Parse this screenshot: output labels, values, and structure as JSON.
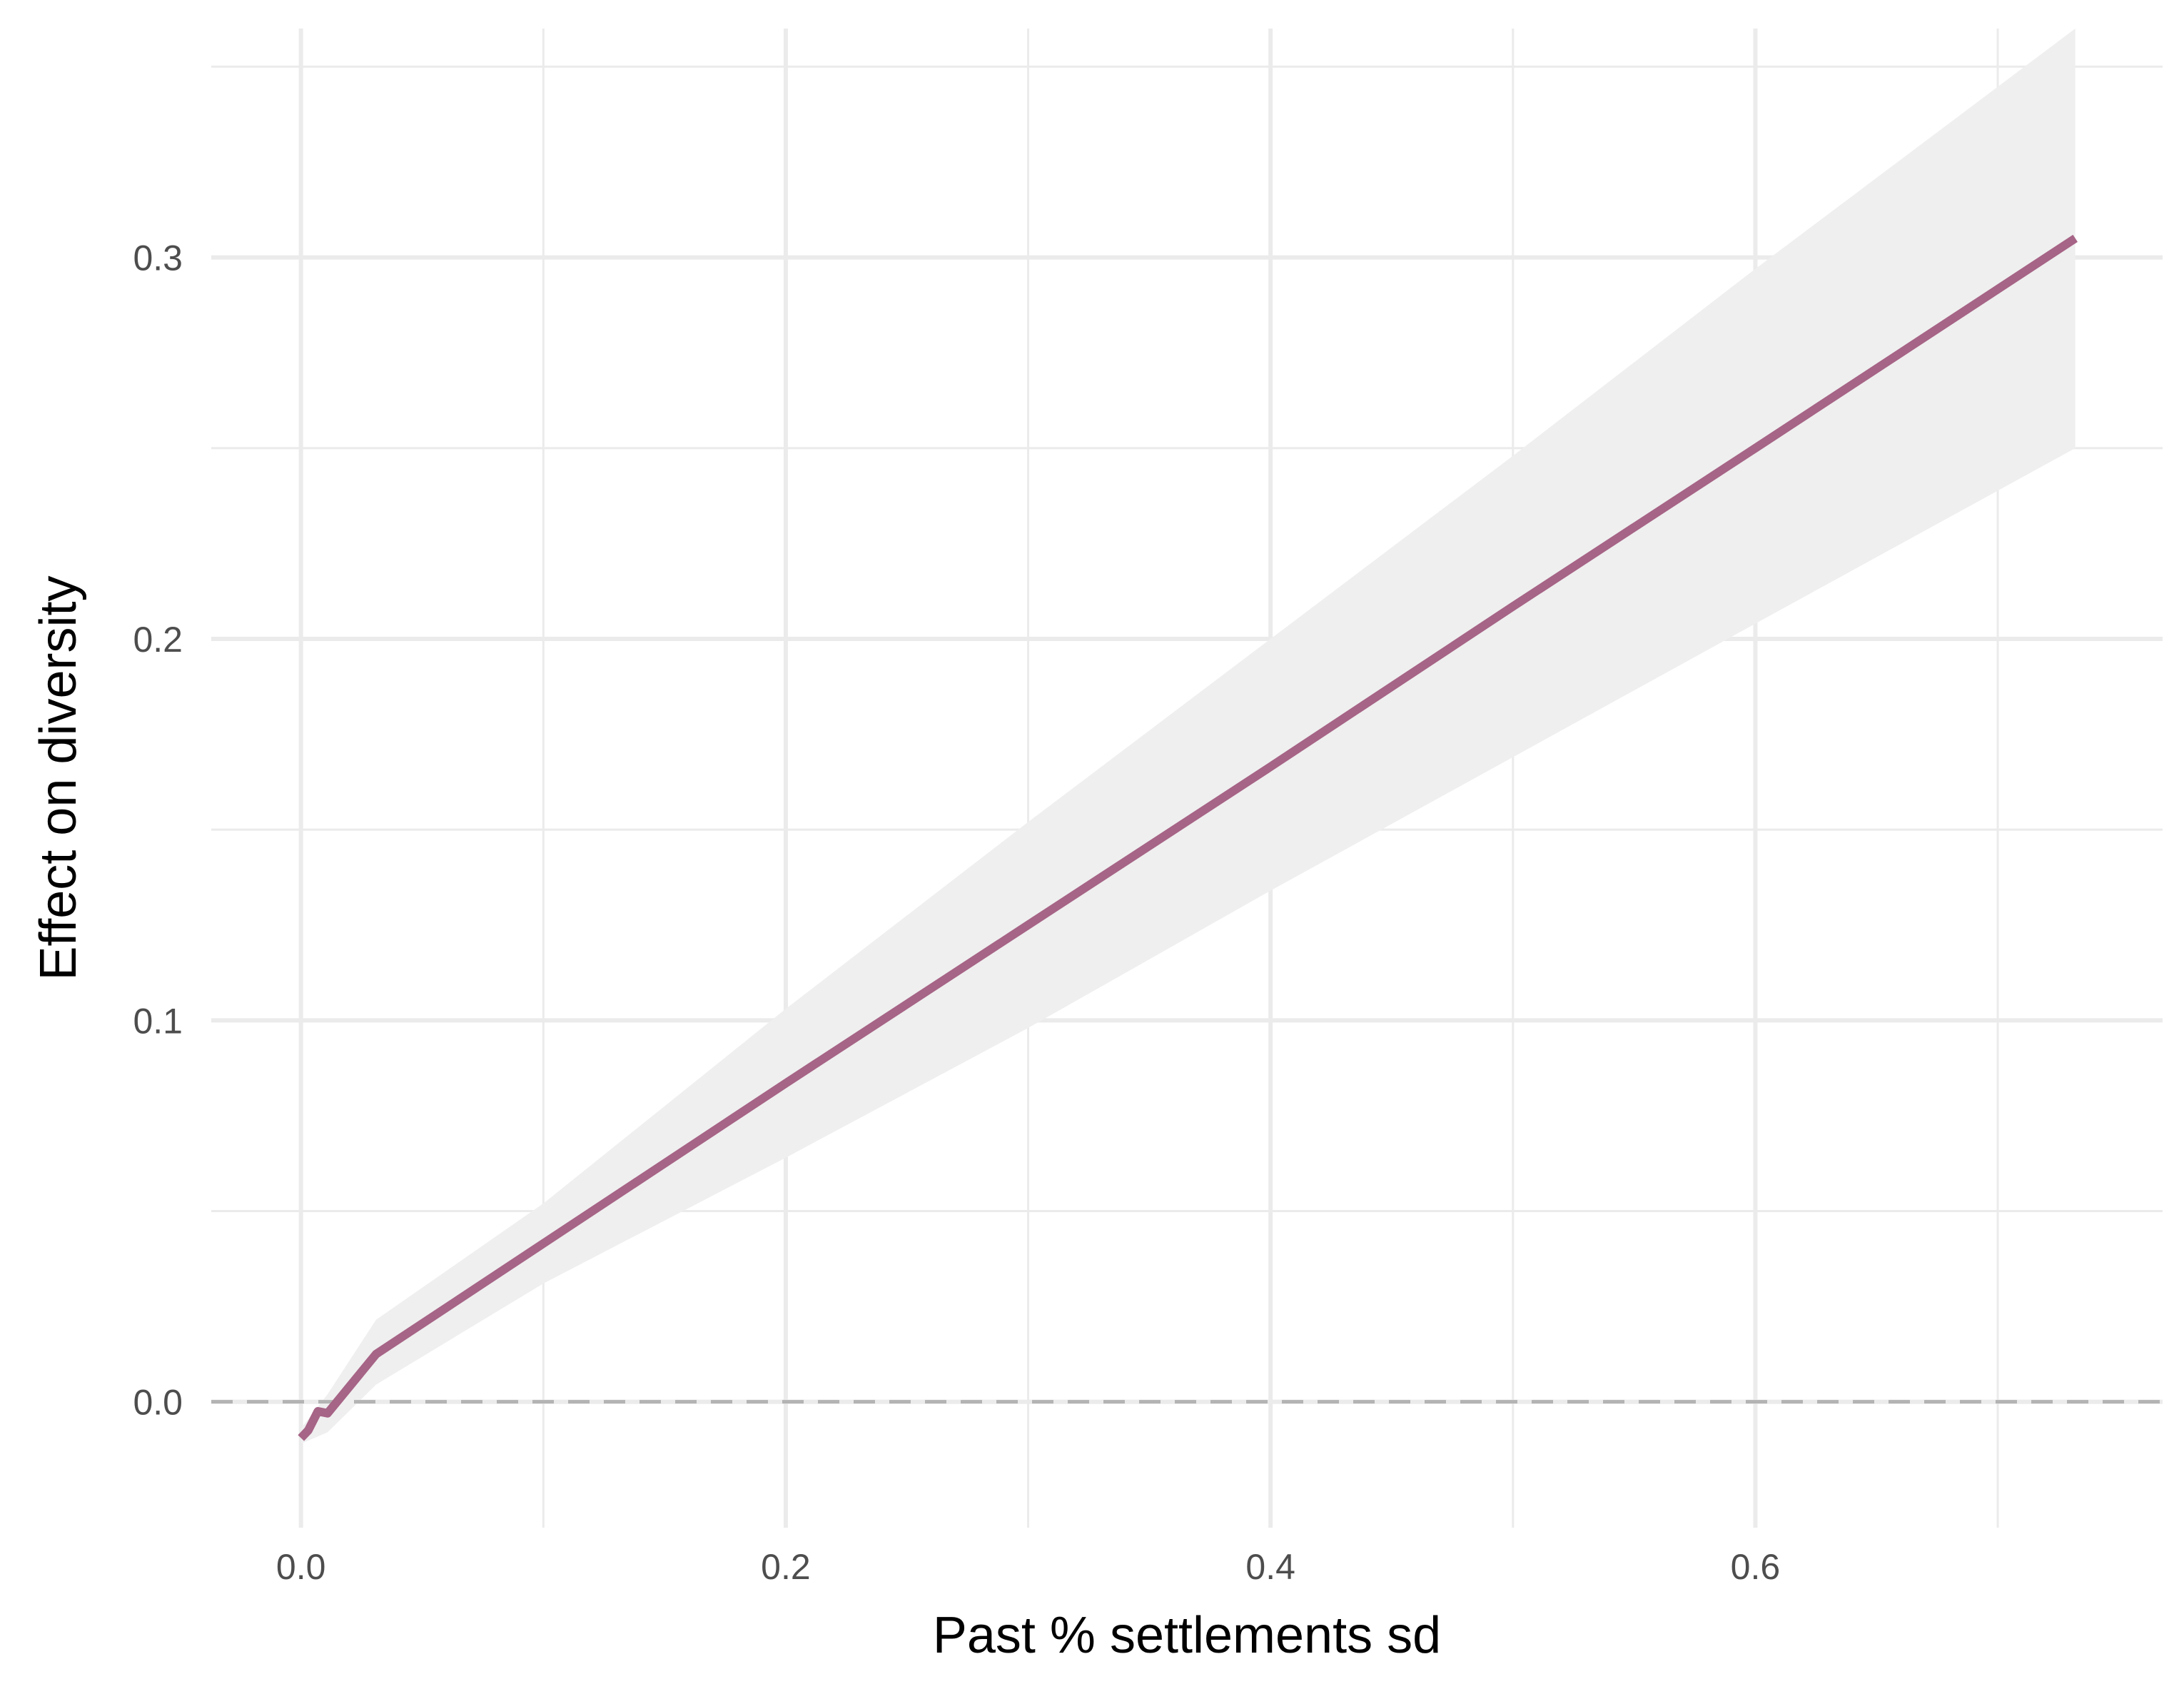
{
  "chart_data": {
    "type": "line",
    "title": "",
    "xlabel": "Past % settlements sd",
    "ylabel": "Effect on diversity",
    "xlim": [
      -0.037,
      0.768
    ],
    "ylim": [
      -0.033,
      0.36
    ],
    "x_ticks": [
      0.0,
      0.2,
      0.4,
      0.6
    ],
    "x_tick_labels": [
      "0.0",
      "0.2",
      "0.4",
      "0.6"
    ],
    "x_minor_ticks": [
      0.1,
      0.3,
      0.5,
      0.7
    ],
    "y_ticks": [
      0.0,
      0.1,
      0.2,
      0.3
    ],
    "y_tick_labels": [
      "0.0",
      "0.1",
      "0.2",
      "0.3"
    ],
    "y_minor_ticks": [
      0.05,
      0.15,
      0.25,
      0.35
    ],
    "grid": true,
    "reference_line": {
      "y": 0.0,
      "style": "dashed",
      "color": "#b3b3b3"
    },
    "series": [
      {
        "type": "line",
        "color": "#a66486",
        "x": [
          0.0,
          0.003,
          0.007,
          0.011,
          0.031,
          0.1,
          0.2,
          0.3,
          0.4,
          0.5,
          0.6,
          0.732
        ],
        "y": [
          -0.0095,
          -0.0075,
          -0.0025,
          -0.003,
          0.0125,
          0.0415,
          0.0835,
          0.125,
          0.1665,
          0.2085,
          0.25,
          0.305
        ]
      }
    ],
    "confidence_band": {
      "color": "#efefef",
      "x": [
        0.0,
        0.011,
        0.031,
        0.1,
        0.2,
        0.3,
        0.4,
        0.5,
        0.6,
        0.732
      ],
      "lower": [
        -0.011,
        -0.008,
        0.0045,
        0.031,
        0.064,
        0.098,
        0.134,
        0.169,
        0.204,
        0.25
      ],
      "upper": [
        -0.007,
        0.002,
        0.0215,
        0.052,
        0.103,
        0.152,
        0.2,
        0.248,
        0.297,
        0.36
      ]
    }
  }
}
